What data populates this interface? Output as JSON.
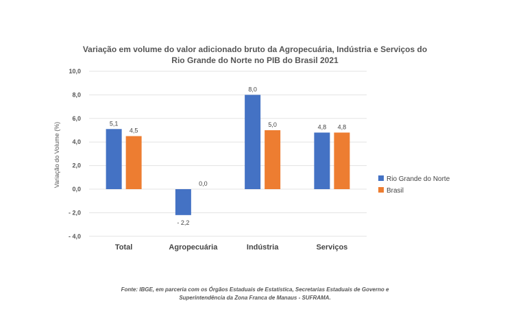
{
  "chart_data": {
    "type": "bar",
    "title": [
      "Variação em volume do valor adicionado bruto da Agropecuária, Indústria e Serviços do",
      "Rio Grande do Norte no PIB do Brasil 2021"
    ],
    "xlabel": "",
    "ylabel": "Variação do Volume (%)",
    "ylim": [
      -4,
      10
    ],
    "yticks": [
      10,
      8,
      6,
      4,
      2,
      0,
      -2,
      -4
    ],
    "ytick_labels": [
      "10,0",
      "8,0",
      "6,0",
      "4,0",
      "2,0",
      "0,0",
      "-   2,0",
      "-   4,0"
    ],
    "categories": [
      "Total",
      "Agropecuária",
      "Indústria",
      "Serviços"
    ],
    "series": [
      {
        "name": "Rio Grande do Norte",
        "color": "#4472C4",
        "values": [
          5.1,
          -2.2,
          8.0,
          4.8
        ],
        "labels": [
          "5,1",
          "-   2,2",
          "8,0",
          "4,8"
        ]
      },
      {
        "name": "Brasil",
        "color": "#ED7D31",
        "values": [
          4.5,
          0.0,
          5.0,
          4.8
        ],
        "labels": [
          "4,5",
          "0,0",
          "5,0",
          "4,8"
        ]
      }
    ],
    "grid": true,
    "legend": "right",
    "source": [
      "Fonte: IBGE, em parceria com os Órgãos Estaduais de Estatística, Secretarias Estaduais de Governo e",
      "Superintendência  da Zona Franca de Manaus - SUFRAMA."
    ]
  }
}
